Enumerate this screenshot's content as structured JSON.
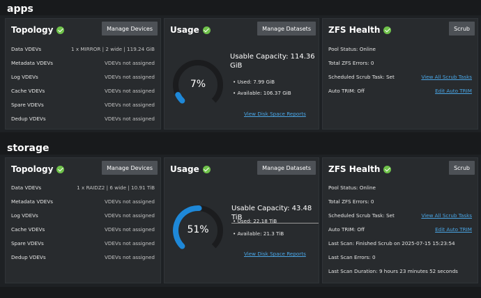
{
  "colors": {
    "accent": "#1e88d8",
    "track": "#1b1c1e",
    "healthy": "#6fc24a",
    "link": "#4aa6e6"
  },
  "pools": [
    {
      "name": "apps",
      "topology": {
        "title": "Topology",
        "button": "Manage Devices",
        "rows": [
          {
            "label": "Data VDEVs",
            "value": "1 x MIRROR | 2 wide | 119.24 GiB"
          },
          {
            "label": "Metadata VDEVs",
            "value": "VDEVs not assigned"
          },
          {
            "label": "Log VDEVs",
            "value": "VDEVs not assigned"
          },
          {
            "label": "Cache VDEVs",
            "value": "VDEVs not assigned"
          },
          {
            "label": "Spare VDEVs",
            "value": "VDEVs not assigned"
          },
          {
            "label": "Dedup VDEVs",
            "value": "VDEVs not assigned"
          }
        ]
      },
      "usage": {
        "title": "Usage",
        "button": "Manage Datasets",
        "percent_label": "7%",
        "percent": 7,
        "capacity_line1": "Usable Capacity: 114.36",
        "capacity_line2": "GiB",
        "used": "Used: 7.99 GiB",
        "available": "Available: 106.37 GiB",
        "report_link": "View Disk Space Reports"
      },
      "health": {
        "title": "ZFS Health",
        "button": "Scrub",
        "rows": [
          {
            "label": "Pool Status: Online",
            "link": ""
          },
          {
            "label": "Total ZFS Errors: 0",
            "link": ""
          },
          {
            "label": "Scheduled Scrub Task: Set",
            "link": "View All Scrub Tasks"
          },
          {
            "label": "Auto TRIM: Off",
            "link": "Edit Auto TRIM"
          }
        ]
      }
    },
    {
      "name": "storage",
      "topology": {
        "title": "Topology",
        "button": "Manage Devices",
        "rows": [
          {
            "label": "Data VDEVs",
            "value": "1 x RAIDZ2 | 6 wide | 10.91 TiB"
          },
          {
            "label": "Metadata VDEVs",
            "value": "VDEVs not assigned"
          },
          {
            "label": "Log VDEVs",
            "value": "VDEVs not assigned"
          },
          {
            "label": "Cache VDEVs",
            "value": "VDEVs not assigned"
          },
          {
            "label": "Spare VDEVs",
            "value": "VDEVs not assigned"
          },
          {
            "label": "Dedup VDEVs",
            "value": "VDEVs not assigned"
          }
        ]
      },
      "usage": {
        "title": "Usage",
        "button": "Manage Datasets",
        "percent_label": "51%",
        "percent": 51,
        "capacity_line1": "Usable Capacity: 43.48 TiB",
        "used": "Used: 22.18 TiB",
        "available": "Available: 21.3 TiB",
        "report_link": "View Disk Space Reports"
      },
      "health": {
        "title": "ZFS Health",
        "button": "Scrub",
        "rows": [
          {
            "label": "Pool Status: Online",
            "link": ""
          },
          {
            "label": "Total ZFS Errors: 0",
            "link": ""
          },
          {
            "label": "Scheduled Scrub Task: Set",
            "link": "View All Scrub Tasks"
          },
          {
            "label": "Auto TRIM: Off",
            "link": "Edit Auto TRIM"
          },
          {
            "label": "Last Scan: Finished Scrub on 2025-07-15 15:23:54",
            "link": ""
          },
          {
            "label": "Last Scan Errors: 0",
            "link": ""
          },
          {
            "label": "Last Scan Duration: 9 hours 23 minutes 52 seconds",
            "link": ""
          }
        ]
      }
    }
  ]
}
